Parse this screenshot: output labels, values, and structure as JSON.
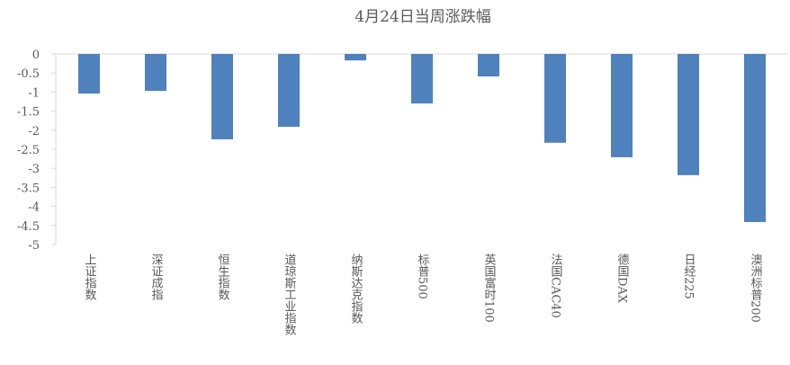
{
  "chart_data": {
    "type": "bar",
    "title": "4月24日当周涨跌幅",
    "categories": [
      "上证指数",
      "深证成指",
      "恒生指数",
      "道琼斯工业指数",
      "纳斯达克指数",
      "标普500",
      "英国富时100",
      "法国CAC40",
      "德国DAX",
      "日经225",
      "澳洲标普200"
    ],
    "values": [
      -1.04,
      -0.97,
      -2.24,
      -1.91,
      -0.17,
      -1.3,
      -0.59,
      -2.33,
      -2.71,
      -3.18,
      -4.41
    ],
    "color": "#4f81bd",
    "ylim": [
      -5,
      0
    ],
    "yticks": [
      0,
      -0.5,
      -1,
      -1.5,
      -2,
      -2.5,
      -3,
      -3.5,
      -4,
      -4.5,
      -5
    ]
  }
}
